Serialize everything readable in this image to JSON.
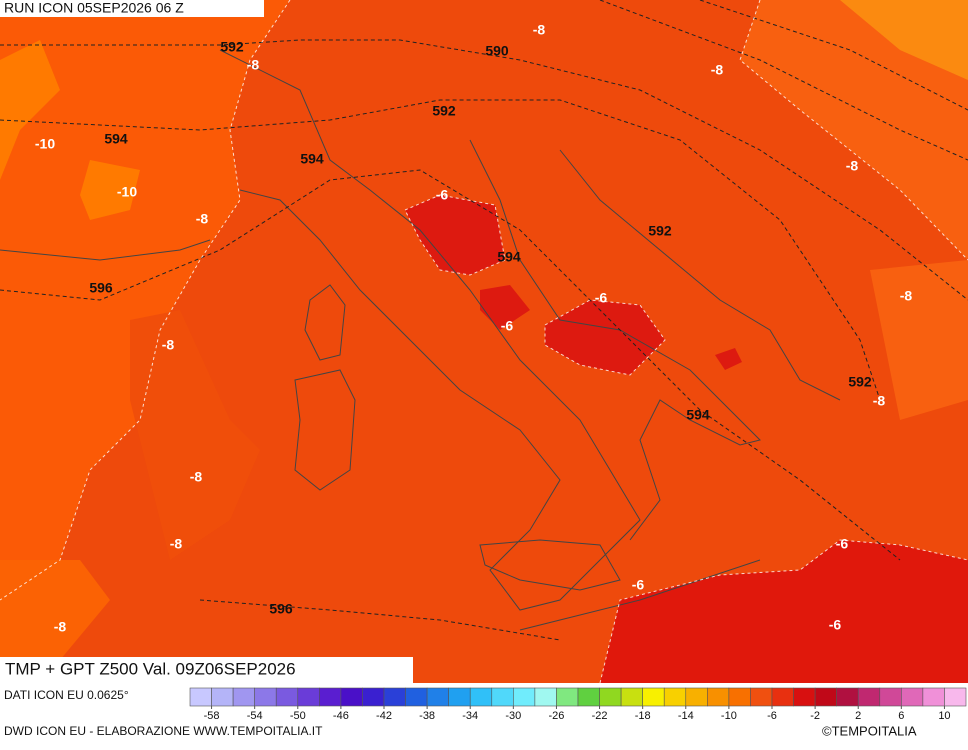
{
  "header": {
    "run": "RUN ICON 05SEP2026 06 Z",
    "title": "TMP + GPT Z500 Val. 09Z06SEP2026"
  },
  "map": {
    "contour_labels": [
      592,
      -8,
      590,
      -8,
      -8,
      592,
      -10,
      594,
      594,
      -10,
      -8,
      -6,
      -8,
      592,
      594,
      596,
      -6,
      -6,
      -8,
      -8,
      592,
      -8,
      594,
      -8,
      -8,
      -6,
      -6,
      596,
      -8,
      -6
    ]
  },
  "footer": {
    "source": "DATI ICON EU 0.0625°",
    "credit": "DWD ICON EU - ELABORAZIONE WWW.TEMPOITALIA.IT",
    "copyright": "©TEMPOITALIA"
  },
  "colorbar": {
    "ticks": [
      -58,
      -54,
      -50,
      -46,
      -42,
      -38,
      -34,
      -30,
      -26,
      -22,
      -18,
      -14,
      -10,
      -6,
      -2,
      2,
      6,
      10
    ],
    "colors": [
      "#c8c8ff",
      "#b4b4f8",
      "#a096f0",
      "#8c78e8",
      "#7a5ae0",
      "#6a3cd8",
      "#5a1ed0",
      "#4a10c8",
      "#3a20d0",
      "#2a40d8",
      "#2060e0",
      "#2080e8",
      "#20a0f0",
      "#30c0f8",
      "#50d8fa",
      "#70ecfc",
      "#a0f8f0",
      "#80e880",
      "#60d040",
      "#90d820",
      "#c8e010",
      "#f8f000",
      "#f8d000",
      "#f8b000",
      "#f89000",
      "#f87000",
      "#f05010",
      "#e83010",
      "#d81010",
      "#c00818",
      "#b01040",
      "#c02870",
      "#d04898",
      "#e068b8",
      "#f090d8",
      "#f8b8ec"
    ]
  }
}
